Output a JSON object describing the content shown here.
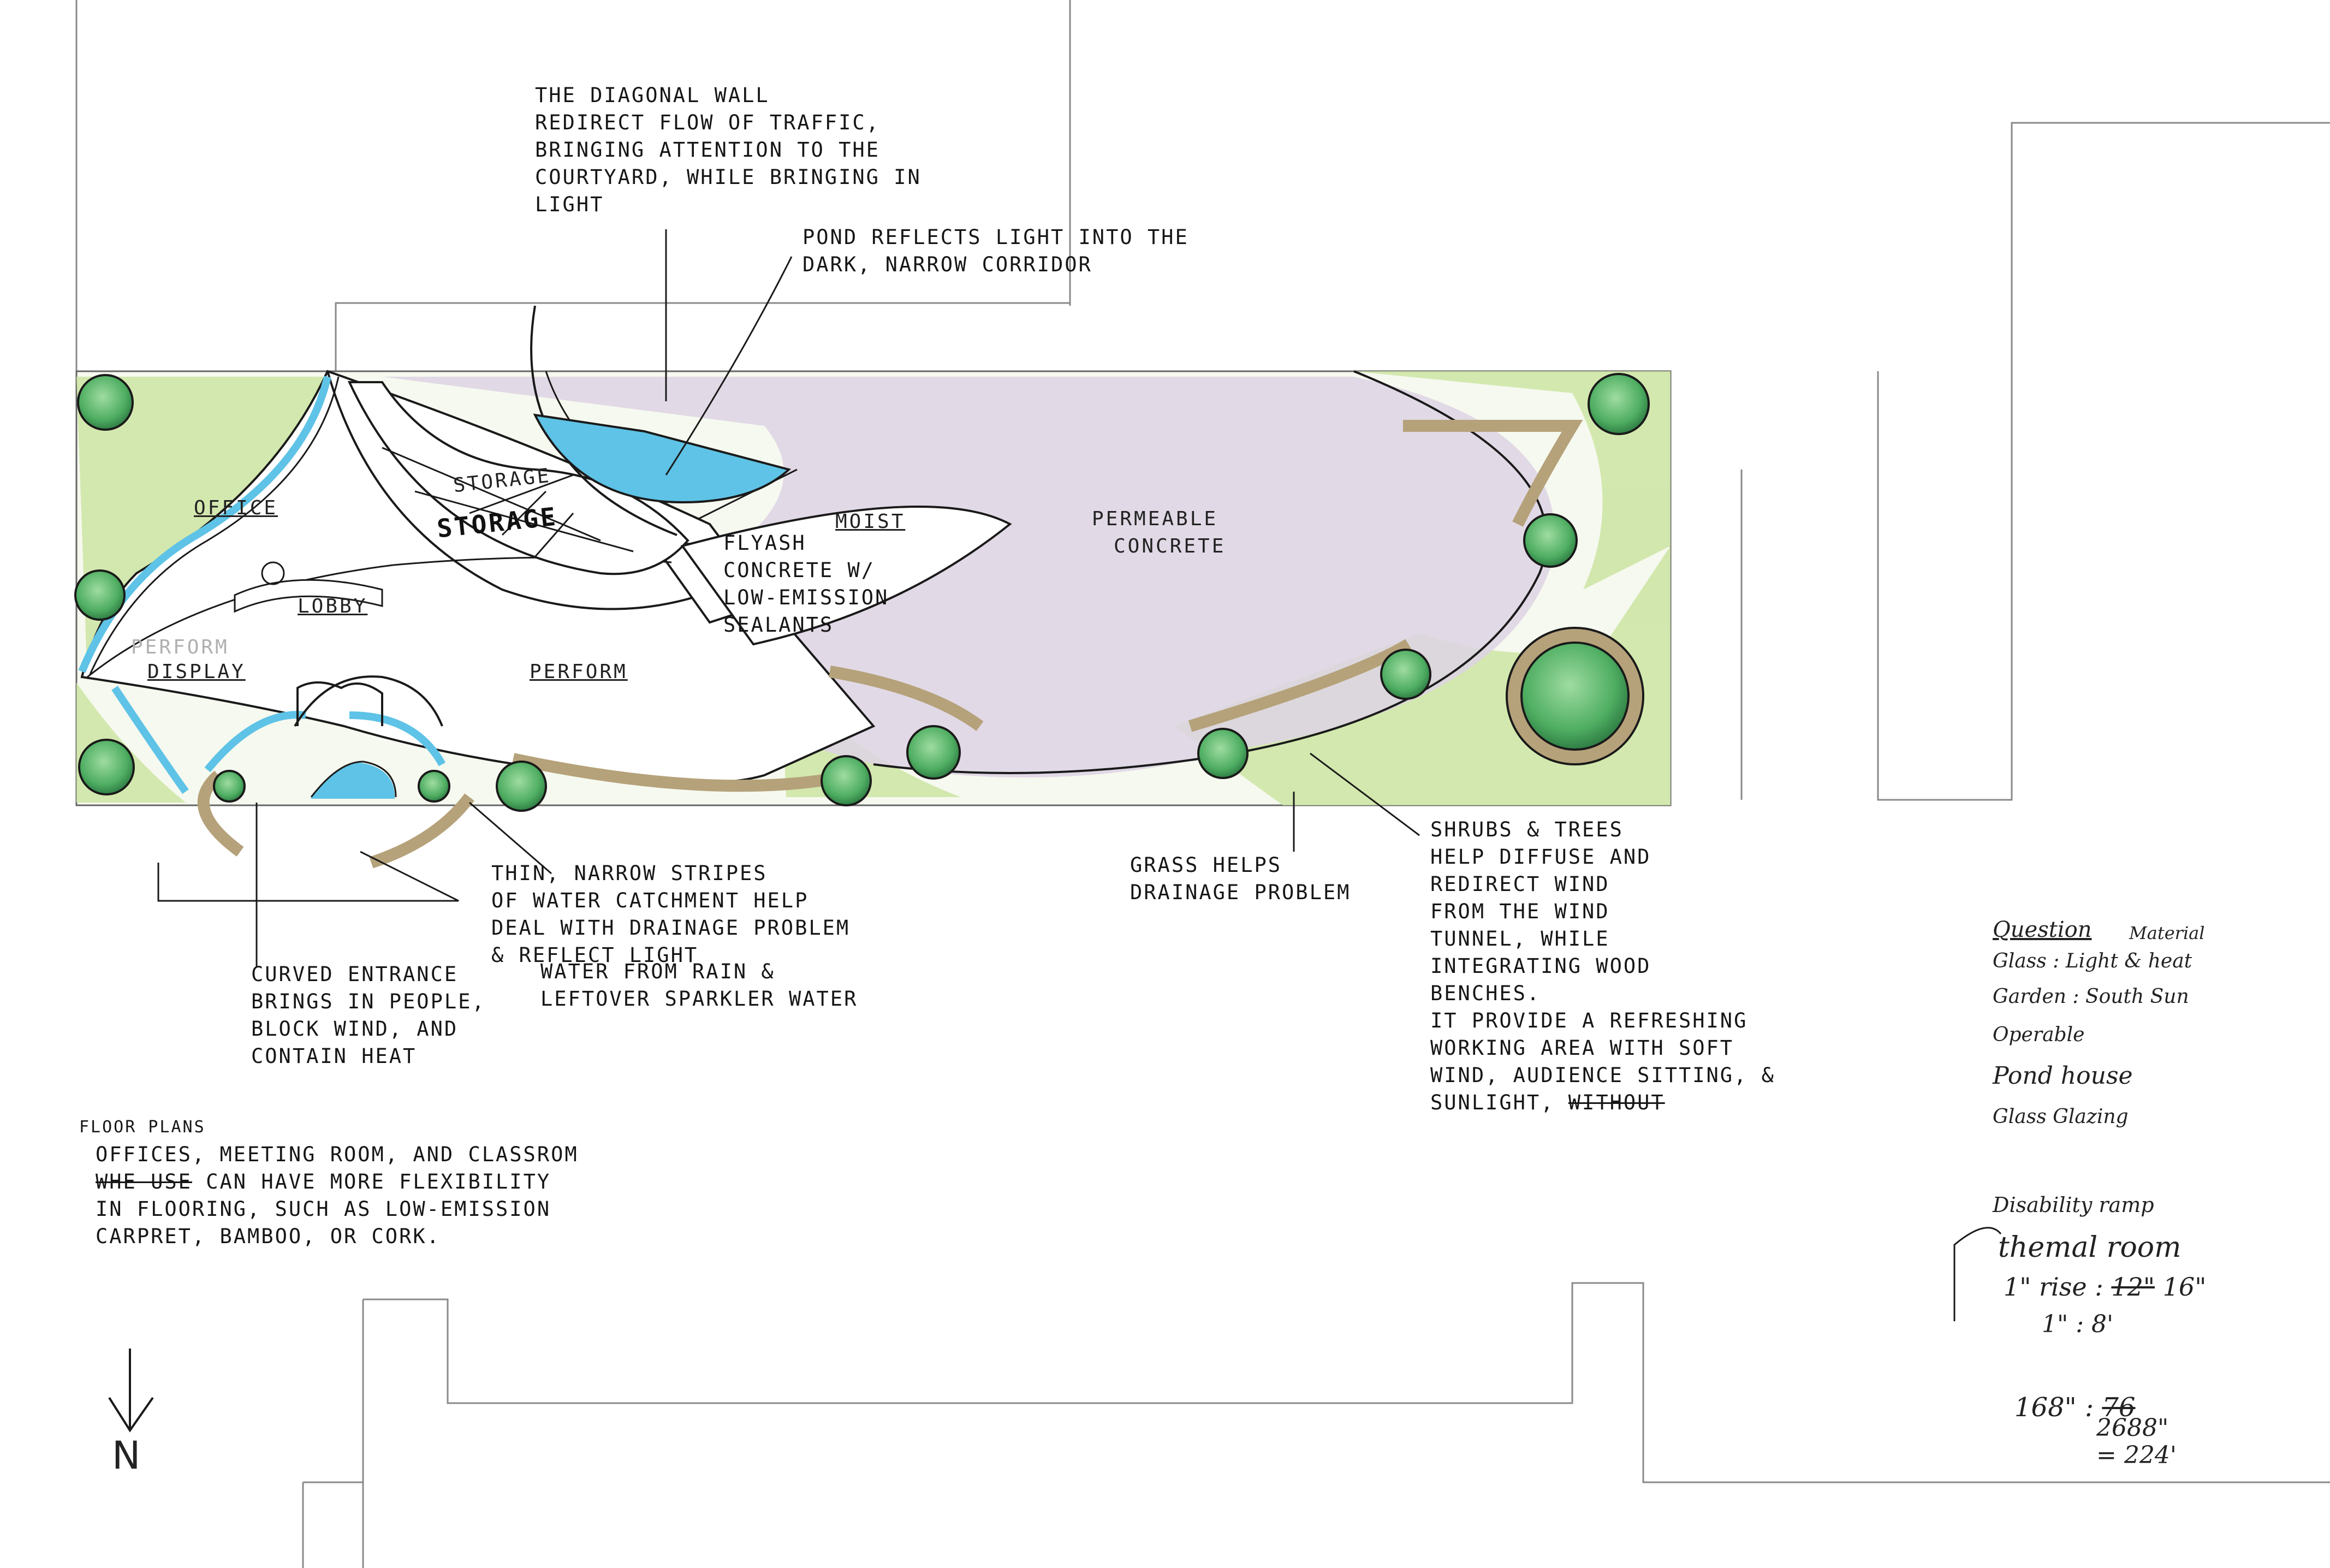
{
  "notes": {
    "diagonal_wall": [
      "THE DIAGONAL WALL",
      "REDIRECT FLOW OF TRAFFIC,",
      "BRINGING ATTENTION TO THE",
      "COURTYARD, WHILE BRINGING IN",
      "LIGHT"
    ],
    "pond": [
      "POND REFLECTS LIGHT INTO THE",
      "DARK, NARROW CORRIDOR"
    ],
    "flyash": [
      "FLYASH",
      "CONCRETE W/",
      "LOW-EMISSION",
      "SEALANTS"
    ],
    "stripes": [
      "THIN, NARROW STRIPES",
      "OF WATER CATCHMENT HELP",
      "DEAL WITH DRAINAGE PROBLEM",
      "& REFLECT LIGHT"
    ],
    "water_from": [
      "WATER FROM RAIN &",
      "LEFTOVER SPARKLER WATER"
    ],
    "curved_entrance": [
      "CURVED ENTRANCE",
      "BRINGS IN PEOPLE,",
      "BLOCK WIND, AND",
      "CONTAIN HEAT"
    ],
    "grass": [
      "GRASS HELPS",
      "DRAINAGE PROBLEM"
    ],
    "shrubs": [
      "SHRUBS & TREES",
      "HELP DIFFUSE AND",
      "REDIRECT WIND",
      "FROM THE WIND",
      "TUNNEL, WHILE",
      "INTEGRATING WOOD",
      "BENCHES.",
      "IT PROVIDE A REFRESHING",
      "WORKING AREA WITH SOFT",
      "WIND, AUDIENCE SITTING, &",
      "SUNLIGHT,"
    ],
    "shrubs_struck": "WITHOUT",
    "floor_plans_title": "FLOOR PLANS",
    "floor_plans_lines": [
      "OFFICES, MEETING ROOM, AND CLASSROM",
      "CAN HAVE MORE FLEXIBILITY",
      "IN FLOORING, SUCH AS LOW-EMISSION",
      "CARPRET, BAMBOO, OR CORK."
    ],
    "floor_plans_struck": "WHE USE"
  },
  "labels": {
    "office": "OFFICE",
    "lobby": "LOBBY",
    "display": "DISPLAY",
    "perform_faint": "PERFORM",
    "perform": "PERFORM",
    "storage_outline": "STORAGE",
    "storage_bold": "STORAGE",
    "moist": "MOIST",
    "permeable": [
      "PERMEABLE",
      "CONCRETE"
    ]
  },
  "side_notes": {
    "question": "Question",
    "material": "Material",
    "glass": "Glass : Light & heat",
    "garden": "Garden : South Sun",
    "operable": "Operable",
    "pond_house": "Pond house",
    "glass_glazing": "Glass Glazing",
    "disability": "Disability ramp",
    "thermal": "themal room",
    "rise_a": "1\" rise :",
    "rise_a_struck": "12\"",
    "rise_a_val": "16\"",
    "rise_b": "1\" : 8'",
    "calc_a": "168\" :",
    "calc_a_struck": "76",
    "calc_b": "2688\"",
    "calc_c": "= 224'"
  },
  "north_arrow": {
    "letter": "N"
  },
  "colors": {
    "grass": "#cfe6a6",
    "pavement": "#ddd3e4",
    "water": "#5ec3e6",
    "wood": "#b5a27a",
    "tree": "#59b56b",
    "line": "#1a1a1a"
  }
}
